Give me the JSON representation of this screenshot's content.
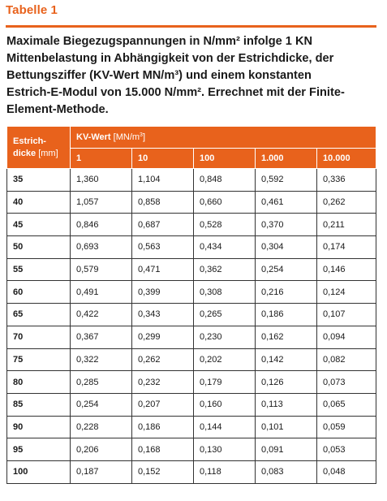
{
  "table_label": "Tabelle 1",
  "caption_lines": [
    "Maximale Biegezugspannungen in N/mm² infolge 1 KN",
    "Mittenbelastung in Abhängigkeit von der Estrichdicke, der",
    "Bettungsziffer (KV-Wert MN/m³) und einem konstanten",
    "Estrich-E-Modul von 15.000 N/mm². Errechnet mit der Finite-",
    "Element-Methode."
  ],
  "header": {
    "col0_line1": "Estrich-",
    "col0_line2_bold": "dicke",
    "col0_line2_normal": " [mm]",
    "group_bold": "KV-Wert",
    "group_normal": " [MN/m",
    "group_sup": "3",
    "group_close": "]",
    "kv_values": [
      "1",
      "10",
      "100",
      "1.000",
      "10.000"
    ]
  },
  "rows": [
    {
      "thickness": "35",
      "values": [
        "1,360",
        "1,104",
        "0,848",
        "0,592",
        "0,336"
      ]
    },
    {
      "thickness": "40",
      "values": [
        "1,057",
        "0,858",
        "0,660",
        "0,461",
        "0,262"
      ]
    },
    {
      "thickness": "45",
      "values": [
        "0,846",
        "0,687",
        "0,528",
        "0,370",
        "0,211"
      ]
    },
    {
      "thickness": "50",
      "values": [
        "0,693",
        "0,563",
        "0,434",
        "0,304",
        "0,174"
      ]
    },
    {
      "thickness": "55",
      "values": [
        "0,579",
        "0,471",
        "0,362",
        "0,254",
        "0,146"
      ]
    },
    {
      "thickness": "60",
      "values": [
        "0,491",
        "0,399",
        "0,308",
        "0,216",
        "0,124"
      ]
    },
    {
      "thickness": "65",
      "values": [
        "0,422",
        "0,343",
        "0,265",
        "0,186",
        "0,107"
      ]
    },
    {
      "thickness": "70",
      "values": [
        "0,367",
        "0,299",
        "0,230",
        "0,162",
        "0,094"
      ]
    },
    {
      "thickness": "75",
      "values": [
        "0,322",
        "0,262",
        "0,202",
        "0,142",
        "0,082"
      ]
    },
    {
      "thickness": "80",
      "values": [
        "0,285",
        "0,232",
        "0,179",
        "0,126",
        "0,073"
      ]
    },
    {
      "thickness": "85",
      "values": [
        "0,254",
        "0,207",
        "0,160",
        "0,113",
        "0,065"
      ]
    },
    {
      "thickness": "90",
      "values": [
        "0,228",
        "0,186",
        "0,144",
        "0,101",
        "0,059"
      ]
    },
    {
      "thickness": "95",
      "values": [
        "0,206",
        "0,168",
        "0,130",
        "0,091",
        "0,053"
      ]
    },
    {
      "thickness": "100",
      "values": [
        "0,187",
        "0,152",
        "0,118",
        "0,083",
        "0,048"
      ]
    }
  ],
  "colors": {
    "accent": "#e8621c",
    "header_text": "#ffffff",
    "border": "#333333"
  }
}
